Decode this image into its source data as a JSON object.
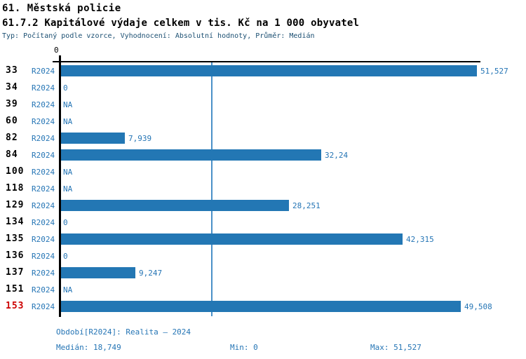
{
  "header": {
    "title1": "61. Městská policie",
    "title2": "61.7.2 Kapitálové výdaje celkem v tis. Kč na 1 000 obyvatel",
    "meta": "Typ: Počítaný podle vzorce, Vyhodnocení: Absolutní hodnoty, Průměr: Medián"
  },
  "chart_data": {
    "type": "bar",
    "orientation": "horizontal",
    "title": "61.7.2 Kapitálové výdaje celkem v tis. Kč na 1 000 obyvatel",
    "unit": "tis. Kč na 1 000 obyvatel",
    "axis_top_tick_label": "0",
    "xlim": [
      0,
      51.527
    ],
    "grid": false,
    "series_name": "R2024",
    "categories": [
      "33",
      "34",
      "39",
      "60",
      "82",
      "84",
      "100",
      "118",
      "129",
      "134",
      "135",
      "136",
      "137",
      "151",
      "153"
    ],
    "rows": [
      {
        "id": "33",
        "series": "R2024",
        "value": 51.527,
        "label": "51,527",
        "highlight": false
      },
      {
        "id": "34",
        "series": "R2024",
        "value": 0,
        "label": "0",
        "highlight": false
      },
      {
        "id": "39",
        "series": "R2024",
        "value": null,
        "label": "NA",
        "highlight": false
      },
      {
        "id": "60",
        "series": "R2024",
        "value": null,
        "label": "NA",
        "highlight": false
      },
      {
        "id": "82",
        "series": "R2024",
        "value": 7.939,
        "label": "7,939",
        "highlight": false
      },
      {
        "id": "84",
        "series": "R2024",
        "value": 32.24,
        "label": "32,24",
        "highlight": false
      },
      {
        "id": "100",
        "series": "R2024",
        "value": null,
        "label": "NA",
        "highlight": false
      },
      {
        "id": "118",
        "series": "R2024",
        "value": null,
        "label": "NA",
        "highlight": false
      },
      {
        "id": "129",
        "series": "R2024",
        "value": 28.251,
        "label": "28,251",
        "highlight": false
      },
      {
        "id": "134",
        "series": "R2024",
        "value": 0,
        "label": "0",
        "highlight": false
      },
      {
        "id": "135",
        "series": "R2024",
        "value": 42.315,
        "label": "42,315",
        "highlight": false
      },
      {
        "id": "136",
        "series": "R2024",
        "value": 0,
        "label": "0",
        "highlight": false
      },
      {
        "id": "137",
        "series": "R2024",
        "value": 9.247,
        "label": "9,247",
        "highlight": false
      },
      {
        "id": "151",
        "series": "R2024",
        "value": null,
        "label": "NA",
        "highlight": false
      },
      {
        "id": "153",
        "series": "R2024",
        "value": 49.508,
        "label": "49,508",
        "highlight": true
      }
    ],
    "median": 18.749,
    "legend_position": "none",
    "colors": {
      "bar": "#2377b4",
      "blue_text": "#2575b5",
      "median_line": "#4a90c8",
      "highlight_red": "#cc0000",
      "meta_navy": "#1b4f72"
    }
  },
  "footer": {
    "period_line": "Období[R2024]: Realita – 2024",
    "median_label": "Medián: 18,749",
    "min_label": "Min: 0",
    "max_label": "Max: 51,527"
  }
}
